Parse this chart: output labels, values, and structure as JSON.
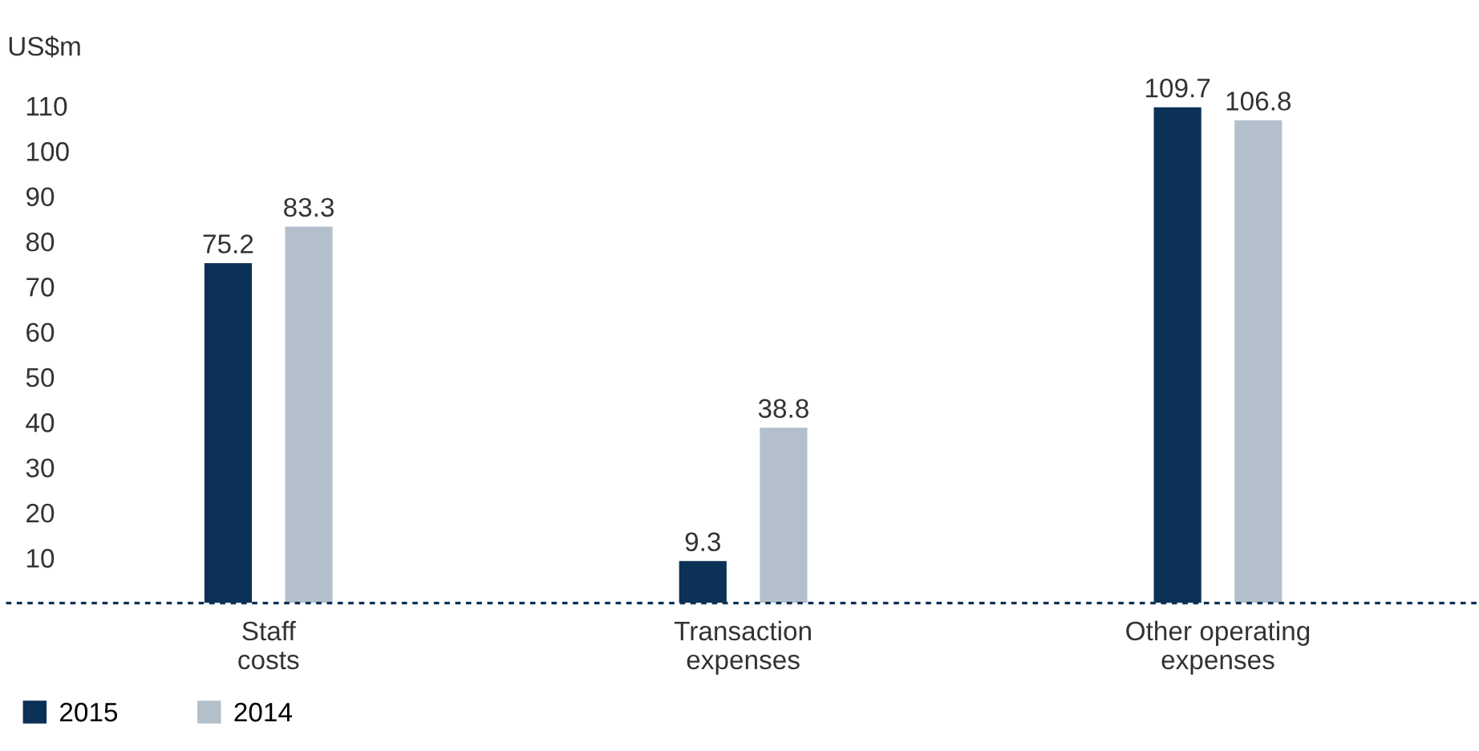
{
  "chart_data": {
    "type": "bar",
    "ylabel": "US$m",
    "categories": [
      "Staff\ncosts",
      "Transaction\nexpenses",
      "Other operating\nexpenses"
    ],
    "series": [
      {
        "name": "2015",
        "color": "#0b3156",
        "values": [
          75.2,
          9.3,
          109.7
        ]
      },
      {
        "name": "2014",
        "color": "#b3c0cb",
        "values": [
          83.3,
          38.8,
          106.8
        ]
      }
    ],
    "ylim": [
      0,
      110
    ],
    "yticks": [
      10,
      20,
      30,
      40,
      50,
      60,
      70,
      80,
      90,
      100,
      110
    ],
    "data_labels": true,
    "grid": false,
    "legend": "bottom left"
  }
}
